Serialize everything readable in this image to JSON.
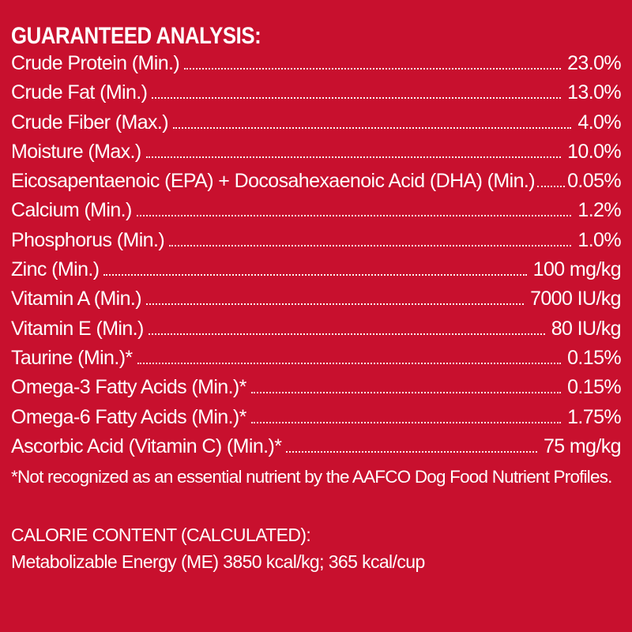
{
  "heading": "GUARANTEED ANALYSIS:",
  "rows": [
    {
      "label": "Crude Protein (Min.)",
      "value": "23.0%"
    },
    {
      "label": "Crude Fat (Min.)",
      "value": "13.0%"
    },
    {
      "label": "Crude Fiber (Max.)",
      "value": "4.0%"
    },
    {
      "label": "Moisture (Max.)",
      "value": "10.0%"
    },
    {
      "label": "Eicosapentaenoic (EPA) + Docosahexaenoic Acid (DHA) (Min.)",
      "value": "0.05%"
    },
    {
      "label": "Calcium (Min.)",
      "value": "1.2%"
    },
    {
      "label": "Phosphorus (Min.)",
      "value": "1.0%"
    },
    {
      "label": "Zinc (Min.)",
      "value": "100 mg/kg"
    },
    {
      "label": "Vitamin A (Min.)",
      "value": "7000 IU/kg"
    },
    {
      "label": "Vitamin E (Min.)",
      "value": "80 IU/kg"
    },
    {
      "label": "Taurine (Min.)*",
      "value": "0.15%"
    },
    {
      "label": "Omega-3 Fatty Acids (Min.)*",
      "value": "0.15%"
    },
    {
      "label": "Omega-6 Fatty Acids (Min.)*",
      "value": "1.75%"
    },
    {
      "label": "Ascorbic Acid (Vitamin C) (Min.)*",
      "value": "75 mg/kg"
    }
  ],
  "footnote": "*Not recognized as an essential nutrient by the AAFCO Dog Food Nutrient Profiles.",
  "calorie": {
    "title": "CALORIE CONTENT (CALCULATED):",
    "line": "Metabolizable Energy (ME) 3850 kcal/kg;  365 kcal/cup"
  },
  "colors": {
    "background": "#c8102e",
    "text": "#ffffff"
  }
}
